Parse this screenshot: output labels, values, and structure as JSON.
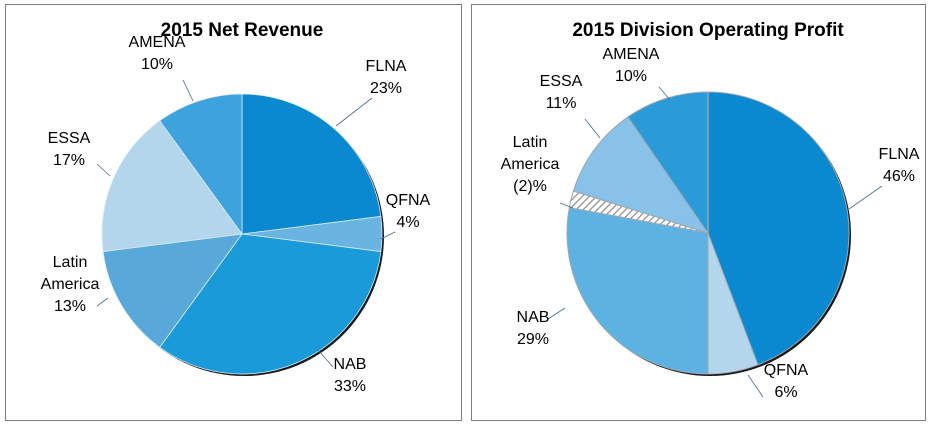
{
  "chart_data": [
    {
      "type": "pie",
      "title": "2015 Net Revenue",
      "start": "12 o'clock",
      "direction": "clockwise",
      "slices": [
        {
          "label": "FLNA",
          "display": "23%",
          "value": 23,
          "color": "#0a88d0"
        },
        {
          "label": "QFNA",
          "display": "4%",
          "value": 4,
          "color": "#6ab4e2"
        },
        {
          "label": "NAB",
          "display": "33%",
          "value": 33,
          "color": "#1a9ad8"
        },
        {
          "label": "Latin America",
          "display": "13%",
          "value": 13,
          "color": "#58a8da"
        },
        {
          "label": "ESSA",
          "display": "17%",
          "value": 17,
          "color": "#b4d6ec"
        },
        {
          "label": "AMENA",
          "display": "10%",
          "value": 10,
          "color": "#3ea2dc"
        }
      ]
    },
    {
      "type": "pie",
      "title": "2015 Division Operating Profit",
      "start": "12 o'clock",
      "direction": "clockwise",
      "slices": [
        {
          "label": "FLNA",
          "display": "46%",
          "value": 46,
          "color": "#0a88d0"
        },
        {
          "label": "QFNA",
          "display": "6%",
          "value": 6,
          "color": "#b4d6ec"
        },
        {
          "label": "NAB",
          "display": "29%",
          "value": 29,
          "color": "#5eb2e2"
        },
        {
          "label": "Latin America",
          "display": "(2)%",
          "value": 2,
          "color": "hatched",
          "negative": true
        },
        {
          "label": "ESSA",
          "display": "11%",
          "value": 11,
          "color": "#88c2e8"
        },
        {
          "label": "AMENA",
          "display": "10%",
          "value": 10,
          "color": "#2a9ad8"
        }
      ]
    }
  ]
}
